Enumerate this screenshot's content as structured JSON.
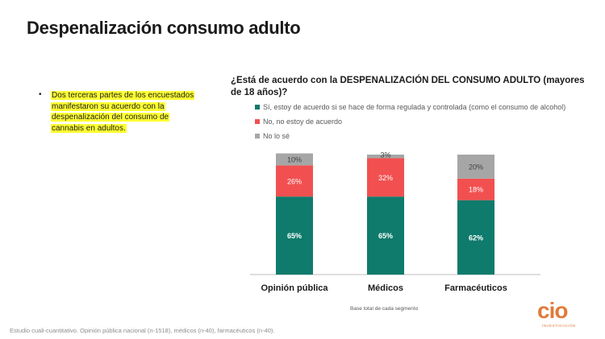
{
  "page_title": "Despenalización consumo adulto",
  "bullet": {
    "text": "Dos terceras partes de los encuestados manifestaron su acuerdo con la despenalización del consumo de cannabis en adultos."
  },
  "colors": {
    "si": "#0f7b6c",
    "no": "#f25050",
    "nose": "#a6a6a6",
    "brand": "#e07b39"
  },
  "chart_data": {
    "type": "bar",
    "stacked": true,
    "title": "¿Está  de acuerdo con la DESPENALIZACIÓN DEL CONSUMO ADULTO (mayores de 18 años)?",
    "categories": [
      "Opinión pública",
      "Médicos",
      "Farmacéuticos"
    ],
    "series": [
      {
        "name": "Sí, estoy de acuerdo si se hace de forma regulada y controlada (como el consumo de alcohol)",
        "values": [
          65,
          65,
          62
        ],
        "color": "#0f7b6c"
      },
      {
        "name": "No, no estoy de acuerdo",
        "values": [
          26,
          32,
          18
        ],
        "color": "#f25050"
      },
      {
        "name": "No lo sé",
        "values": [
          10,
          3,
          20
        ],
        "color": "#a6a6a6"
      }
    ],
    "value_suffix": "%",
    "ylim": [
      0,
      100
    ],
    "legend": "top",
    "grid": false
  },
  "base_note": "Base total de cada segmento",
  "footnote": "Estudio cuali-cuantitativo. Opinión pública nacional (n-1518), médicos (n-40), farmacéuticos (n-40).",
  "logo": {
    "text": "cio",
    "sub": "INVESTIGACIÓN"
  }
}
